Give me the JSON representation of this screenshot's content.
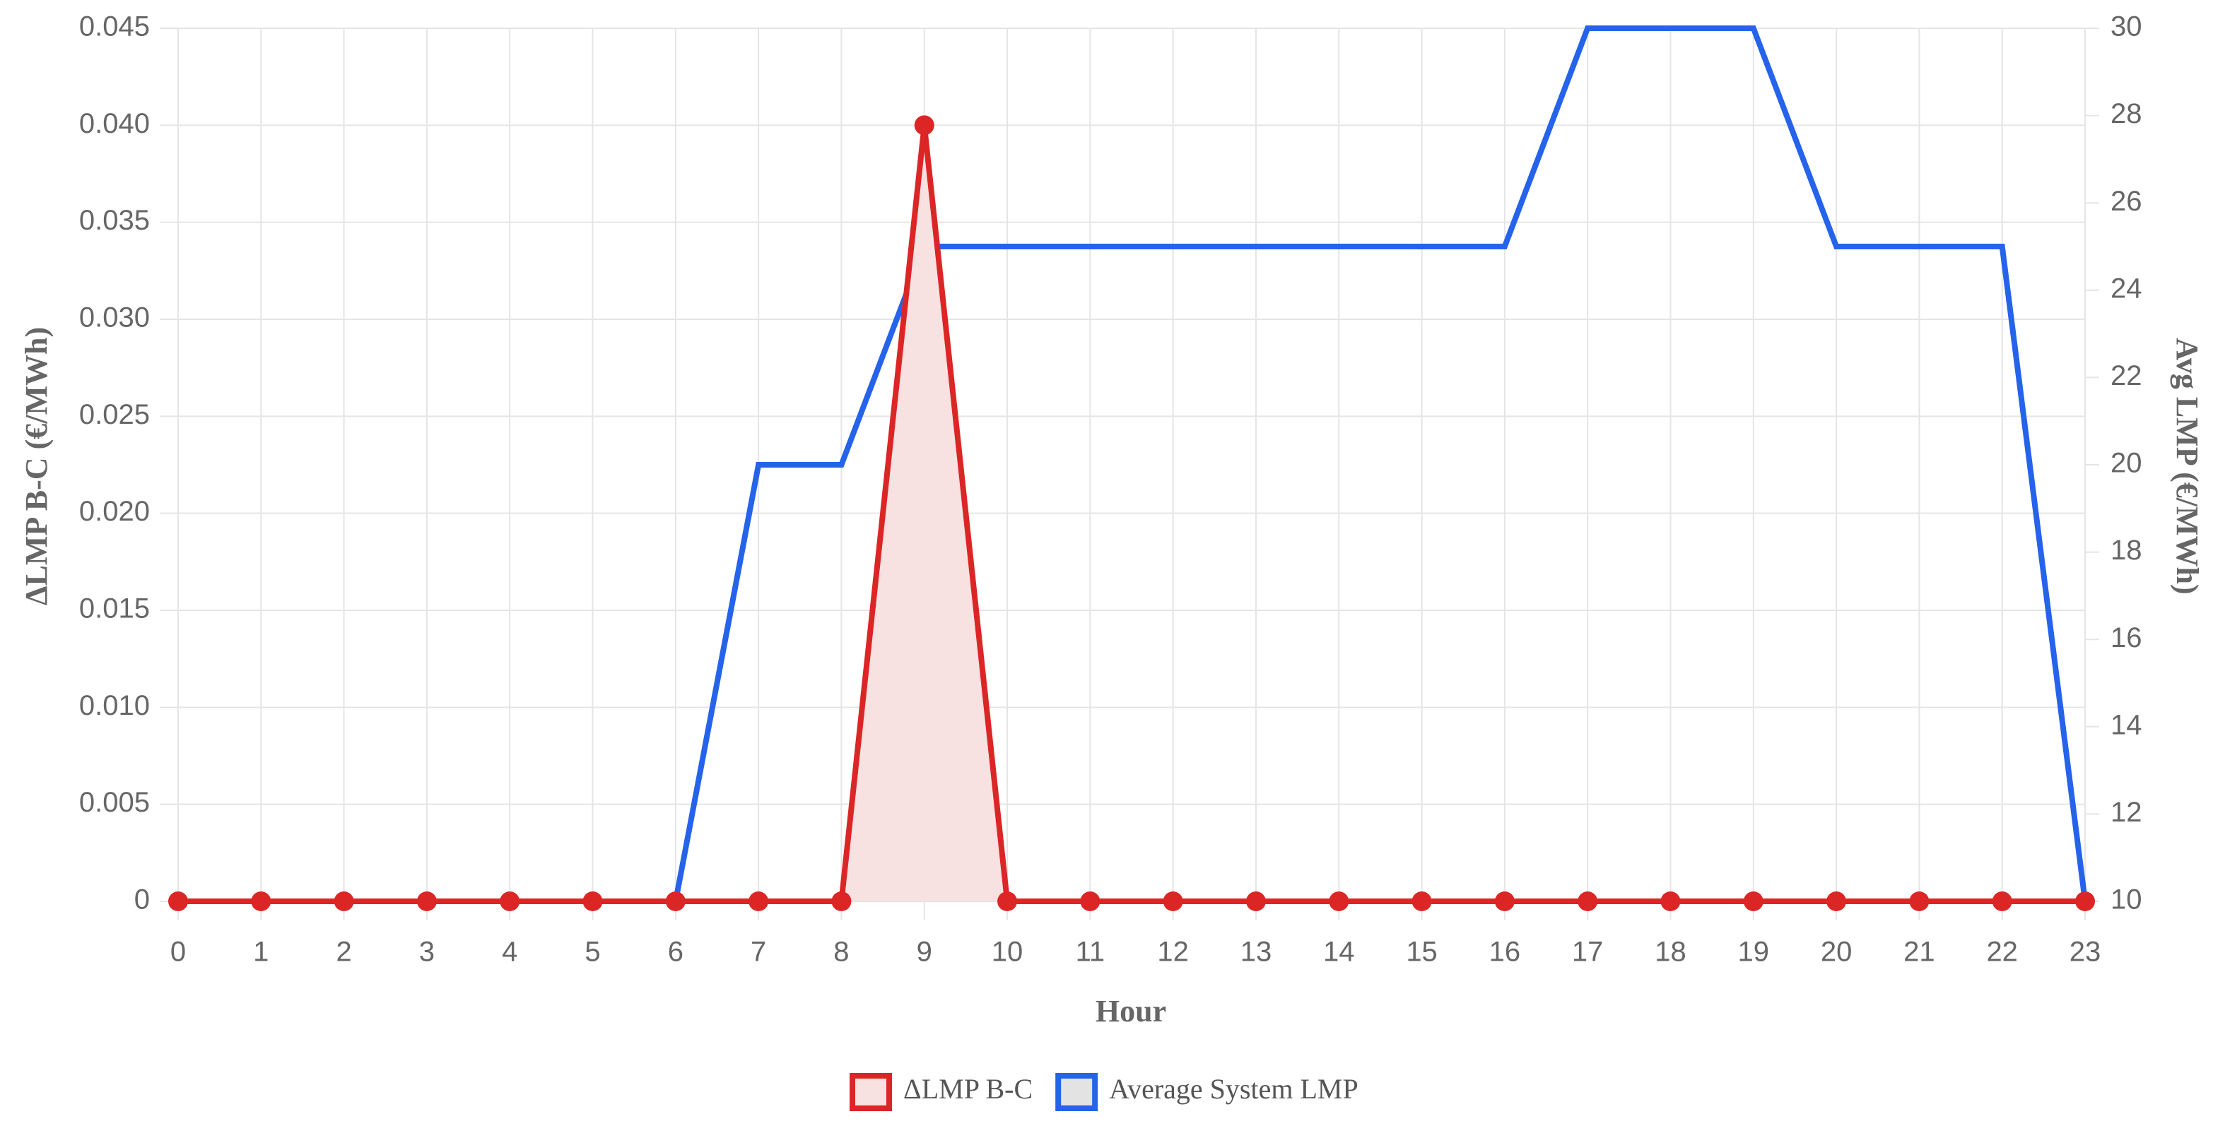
{
  "chart_data": {
    "type": "line",
    "x": [
      0,
      1,
      2,
      3,
      4,
      5,
      6,
      7,
      8,
      9,
      10,
      11,
      12,
      13,
      14,
      15,
      16,
      17,
      18,
      19,
      20,
      21,
      22,
      23
    ],
    "xlim": [
      0,
      23
    ],
    "x_label": "Hour",
    "y_label": "ΔLMP B-C (€/MWh)",
    "y2_label": "Avg LMP (€/MWh)",
    "ylim": [
      0,
      0.045
    ],
    "yticks": [
      0,
      0.005,
      {
        "value": 0.01,
        "label": "0.010"
      },
      0.015,
      {
        "value": 0.02,
        "label": "0.020"
      },
      0.025,
      {
        "value": 0.03,
        "label": "0.030"
      },
      0.035,
      {
        "value": 0.04,
        "label": "0.040"
      },
      0.045
    ],
    "y2lim": [
      10,
      30
    ],
    "y2ticks": [
      10,
      12,
      14,
      16,
      18,
      20,
      22,
      24,
      26,
      28,
      30
    ],
    "grid": true,
    "legend": "bottom",
    "series": [
      {
        "name": "ΔLMP B-C",
        "color": "#dc2626",
        "fill_color": "#f8e1e1",
        "fill": true,
        "points": true,
        "values": [
          0,
          0,
          0,
          0,
          0,
          0,
          0,
          0,
          0,
          0.04,
          0,
          0,
          0,
          0,
          0,
          0,
          0,
          0,
          0,
          0,
          0,
          0,
          0,
          0
        ]
      },
      {
        "name": "Average System LMP",
        "color": "#2563eb",
        "fill_color": "#e3e3e3",
        "fill": false,
        "points": false,
        "axis": "y2",
        "values": [
          10,
          10,
          10,
          10,
          10,
          10,
          10,
          20,
          20,
          25,
          25,
          25,
          25,
          25,
          25,
          25,
          25,
          30,
          30,
          30,
          25,
          25,
          25,
          10
        ]
      }
    ]
  }
}
